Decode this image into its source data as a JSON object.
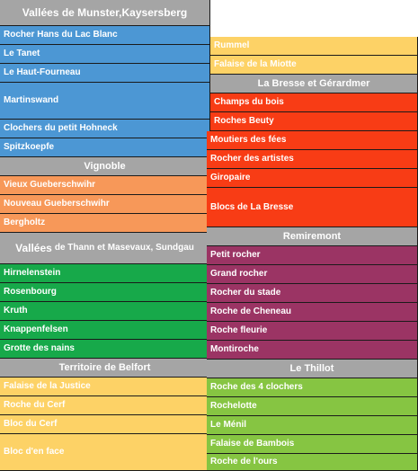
{
  "left": {
    "munster": {
      "header": "Vallées de Munster,Kaysersberg",
      "items": [
        "Rocher Hans du Lac Blanc",
        "Le Tanet",
        "Le Haut-Fourneau",
        "Martinswand",
        "Clochers du petit Hohneck",
        "Spitzkoepfe"
      ]
    },
    "vignoble": {
      "header": "Vignoble",
      "items": [
        "Vieux Gueberschwihr",
        "Nouveau Gueberschwihr",
        "Bergholtz"
      ]
    },
    "thann": {
      "header_main": "Vallées",
      "header_rest": "de Thann et Masevaux, Sundgau",
      "items": [
        "Hirnelenstein",
        "Rosenbourg",
        "Kruth",
        "Knappenfelsen",
        "Grotte des nains"
      ]
    },
    "belfort": {
      "header": "Territoire de Belfort",
      "items": [
        "Falaise de la Justice",
        "Roche du Cerf",
        "Bloc du Cerf",
        "Bloc d'en face"
      ]
    }
  },
  "right": {
    "top": {
      "items": [
        "Rummel",
        "Falaise de la Miotte"
      ]
    },
    "bresse": {
      "header": "La Bresse et Gérardmer",
      "items": [
        "Champs du bois",
        "Roches Beuty",
        "Moutiers des fées",
        "Rocher des artistes",
        "Giropaire",
        "Blocs de La Bresse"
      ]
    },
    "remiremont": {
      "header": "Remiremont",
      "items": [
        "Petit rocher",
        "Grand rocher",
        "Rocher du stade",
        "Roche de Cheneau",
        "Roche fleurie",
        "Montiroche"
      ]
    },
    "thillot": {
      "header": "Le Thillot",
      "items": [
        "Roche des 4 clochers",
        "Rochelotte",
        "Le Ménil",
        "Falaise de Bambois",
        "Roche de l'ours"
      ]
    }
  },
  "colors": {
    "header_gray": "#a5a5a5",
    "munster_blue": "#4c97d4",
    "vignoble_orange": "#f79859",
    "thann_green": "#17a94a",
    "belfort_yellow": "#fdd266",
    "bresse_red": "#f83c15",
    "remiremont_purple": "#9b3464",
    "thillot_lime": "#86c542"
  }
}
